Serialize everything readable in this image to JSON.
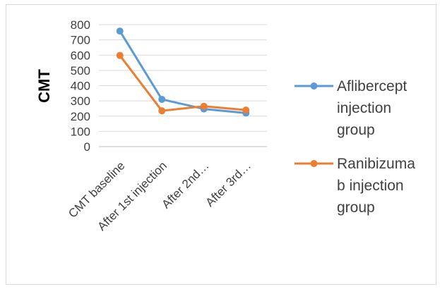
{
  "chart_data": {
    "type": "line",
    "title": "",
    "xlabel": "",
    "ylabel": "CMT",
    "ylim": [
      0,
      800
    ],
    "ytick_step": 100,
    "grid": true,
    "legend_position": "right",
    "categories": [
      "CMT  baseline",
      "After 1st injection",
      "After 2nd…",
      "After 3rd…"
    ],
    "series": [
      {
        "name": "Aflibercept injection group",
        "legend_lines": [
          "Aflibercept",
          "injection",
          "group"
        ],
        "color": "#5b9bd5",
        "values": [
          758,
          310,
          247,
          220
        ]
      },
      {
        "name": "Ranibizumab injection group",
        "legend_lines": [
          "Ranibizuma",
          "b injection",
          "group"
        ],
        "color": "#ed7d31",
        "values": [
          598,
          235,
          265,
          240
        ]
      }
    ]
  }
}
